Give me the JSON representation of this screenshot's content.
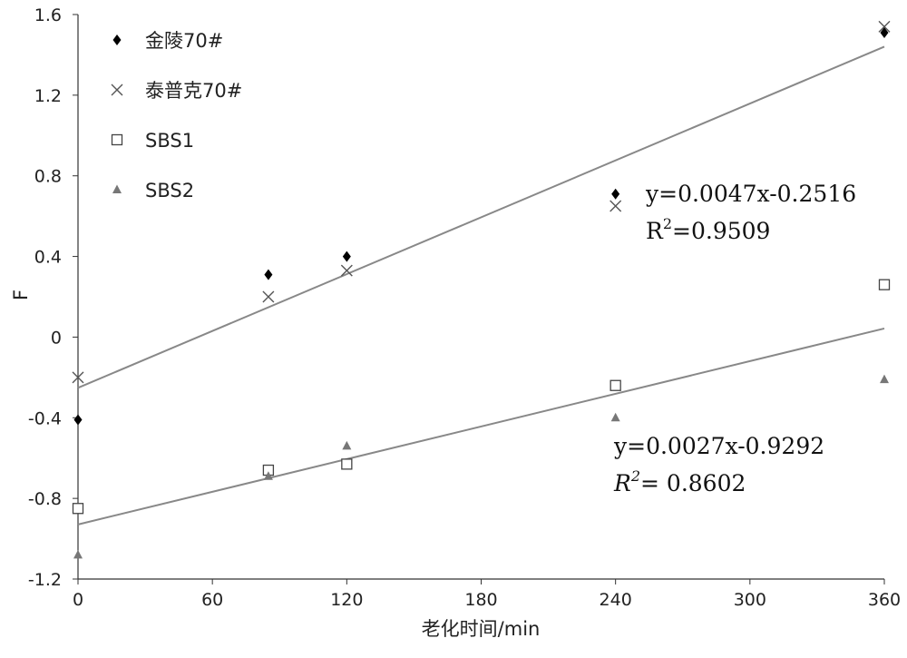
{
  "chart_data": {
    "type": "scatter",
    "xlabel": "老化时间/min",
    "ylabel": "F",
    "xlim": [
      0,
      360
    ],
    "ylim": [
      -1.2,
      1.6
    ],
    "x_ticks": [
      "0",
      "60",
      "120",
      "180",
      "240",
      "300",
      "360"
    ],
    "y_ticks": [
      "-1.2",
      "-0.8",
      "-0.4",
      "0",
      "0.4",
      "0.8",
      "1.2",
      "1.6"
    ],
    "grid": false,
    "legend_position": "top-left",
    "series": [
      {
        "name": "金陵70#",
        "marker": "diamond",
        "color": "#000000",
        "x": [
          0,
          85,
          120,
          240,
          360
        ],
        "y": [
          -0.41,
          0.31,
          0.4,
          0.71,
          1.51
        ]
      },
      {
        "name": "泰普克70#",
        "marker": "x",
        "color": "#555555",
        "x": [
          0,
          85,
          120,
          240,
          360
        ],
        "y": [
          -0.2,
          0.2,
          0.33,
          0.65,
          1.54
        ]
      },
      {
        "name": "SBS1",
        "marker": "square",
        "color": "#444444",
        "x": [
          0,
          85,
          120,
          240,
          360
        ],
        "y": [
          -0.85,
          -0.66,
          -0.63,
          -0.24,
          0.26
        ]
      },
      {
        "name": "SBS2",
        "marker": "triangle",
        "color": "#777777",
        "x": [
          0,
          85,
          120,
          240,
          360
        ],
        "y": [
          -1.08,
          -0.69,
          -0.54,
          -0.4,
          -0.21
        ]
      }
    ],
    "trendlines": [
      {
        "slope": 0.0047,
        "intercept": -0.2516,
        "x": [
          0,
          360
        ],
        "color": "#888888"
      },
      {
        "slope": 0.0027,
        "intercept": -0.9292,
        "x": [
          0,
          360
        ],
        "color": "#888888"
      }
    ],
    "annotations": [
      {
        "equation": "y=0.0047x-0.2516",
        "r2_prefix": "R",
        "r2_sup": "2",
        "r2_value": "=0.9509",
        "italic": false
      },
      {
        "equation": "y=0.0027x-0.9292",
        "r2_prefix": "R",
        "r2_sup": "2",
        "r2_value": "= 0.8602",
        "italic": true
      }
    ]
  }
}
